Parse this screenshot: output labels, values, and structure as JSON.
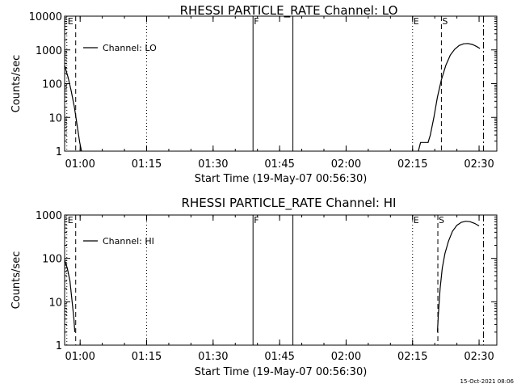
{
  "chart_data": [
    {
      "type": "line",
      "title": "RHESSI PARTICLE_RATE Channel: LO",
      "xlabel": "Start Time (19-May-07 00:56:30)",
      "ylabel": "Counts/sec",
      "yscale": "log",
      "ylim": [
        1,
        10000
      ],
      "xlim_minutes": [
        0,
        97.5
      ],
      "xticks": [
        {
          "t": 3.5,
          "label": "01:00"
        },
        {
          "t": 18.5,
          "label": "01:15"
        },
        {
          "t": 33.5,
          "label": "01:30"
        },
        {
          "t": 48.5,
          "label": "01:45"
        },
        {
          "t": 63.5,
          "label": "02:00"
        },
        {
          "t": 78.5,
          "label": "02:15"
        },
        {
          "t": 93.5,
          "label": "02:30"
        }
      ],
      "yticks": [
        {
          "v": 1,
          "label": "1"
        },
        {
          "v": 10,
          "label": "10"
        },
        {
          "v": 100,
          "label": "100"
        },
        {
          "v": 1000,
          "label": "1000"
        },
        {
          "v": 10000,
          "label": "10000"
        }
      ],
      "legend": "Channel: LO",
      "series": [
        {
          "name": "Channel: LO",
          "segments": [
            [
              [
                0,
                350
              ],
              [
                0.8,
                150
              ],
              [
                1.5,
                60
              ],
              [
                2.2,
                20
              ],
              [
                2.8,
                6
              ],
              [
                3.4,
                1.8
              ],
              [
                3.8,
                1
              ]
            ],
            [
              [
                79.8,
                1
              ],
              [
                80.3,
                1.8
              ],
              [
                82,
                1.8
              ],
              [
                82.5,
                3
              ],
              [
                83.3,
                10
              ],
              [
                84.1,
                40
              ],
              [
                85,
                130
              ],
              [
                86,
                350
              ],
              [
                87,
                700
              ],
              [
                88,
                1050
              ],
              [
                89,
                1350
              ],
              [
                90,
                1520
              ],
              [
                91,
                1550
              ],
              [
                92,
                1450
              ],
              [
                93,
                1250
              ],
              [
                93.7,
                1100
              ]
            ]
          ]
        }
      ],
      "events": [
        {
          "t": 0.5,
          "label": "E",
          "style": "dotted"
        },
        {
          "t": 2.5,
          "label": "",
          "style": "dashed"
        },
        {
          "t": 18.5,
          "label": "",
          "style": "dotted"
        },
        {
          "t": 42.5,
          "label": "F",
          "style": "solid"
        },
        {
          "t": 51.5,
          "label": "",
          "style": "solid"
        },
        {
          "t": 78.5,
          "label": "E",
          "style": "dotted"
        },
        {
          "t": 85.0,
          "label": "S",
          "style": "dashed"
        },
        {
          "t": 94.5,
          "label": "",
          "style": "dashdot"
        }
      ]
    },
    {
      "type": "line",
      "title": "RHESSI PARTICLE_RATE Channel: HI",
      "xlabel": "Start Time (19-May-07 00:56:30)",
      "ylabel": "Counts/sec",
      "yscale": "log",
      "ylim": [
        1,
        1000
      ],
      "xlim_minutes": [
        0,
        97.5
      ],
      "xticks": [
        {
          "t": 3.5,
          "label": "01:00"
        },
        {
          "t": 18.5,
          "label": "01:15"
        },
        {
          "t": 33.5,
          "label": "01:30"
        },
        {
          "t": 48.5,
          "label": "01:45"
        },
        {
          "t": 63.5,
          "label": "02:00"
        },
        {
          "t": 78.5,
          "label": "02:15"
        },
        {
          "t": 93.5,
          "label": "02:30"
        }
      ],
      "yticks": [
        {
          "v": 1,
          "label": "1"
        },
        {
          "v": 10,
          "label": "10"
        },
        {
          "v": 100,
          "label": "100"
        },
        {
          "v": 1000,
          "label": "1000"
        }
      ],
      "legend": "Channel: HI",
      "series": [
        {
          "name": "Channel: HI",
          "segments": [
            [
              [
                0,
                90
              ],
              [
                0.6,
                60
              ],
              [
                1.2,
                30
              ],
              [
                1.7,
                10
              ],
              [
                2.1,
                4
              ],
              [
                2.3,
                2
              ]
            ],
            [
              [
                84.1,
                2
              ],
              [
                84.3,
                5
              ],
              [
                84.7,
                20
              ],
              [
                85.2,
                60
              ],
              [
                85.8,
                130
              ],
              [
                86.6,
                250
              ],
              [
                87.5,
                420
              ],
              [
                88.5,
                580
              ],
              [
                89.5,
                680
              ],
              [
                90.5,
                720
              ],
              [
                91.5,
                700
              ],
              [
                92.5,
                640
              ],
              [
                93.5,
                560
              ]
            ]
          ]
        }
      ],
      "events": [
        {
          "t": 0.5,
          "label": "E",
          "style": "dotted"
        },
        {
          "t": 2.5,
          "label": "",
          "style": "dashed"
        },
        {
          "t": 18.5,
          "label": "",
          "style": "dotted"
        },
        {
          "t": 42.5,
          "label": "F",
          "style": "solid"
        },
        {
          "t": 51.5,
          "label": "",
          "style": "solid"
        },
        {
          "t": 78.5,
          "label": "E",
          "style": "dotted"
        },
        {
          "t": 84.2,
          "label": "S",
          "style": "dashed"
        },
        {
          "t": 94.5,
          "label": "",
          "style": "dashdot"
        }
      ]
    }
  ],
  "footer": {
    "timestamp": "15-Oct-2021 08:06"
  }
}
